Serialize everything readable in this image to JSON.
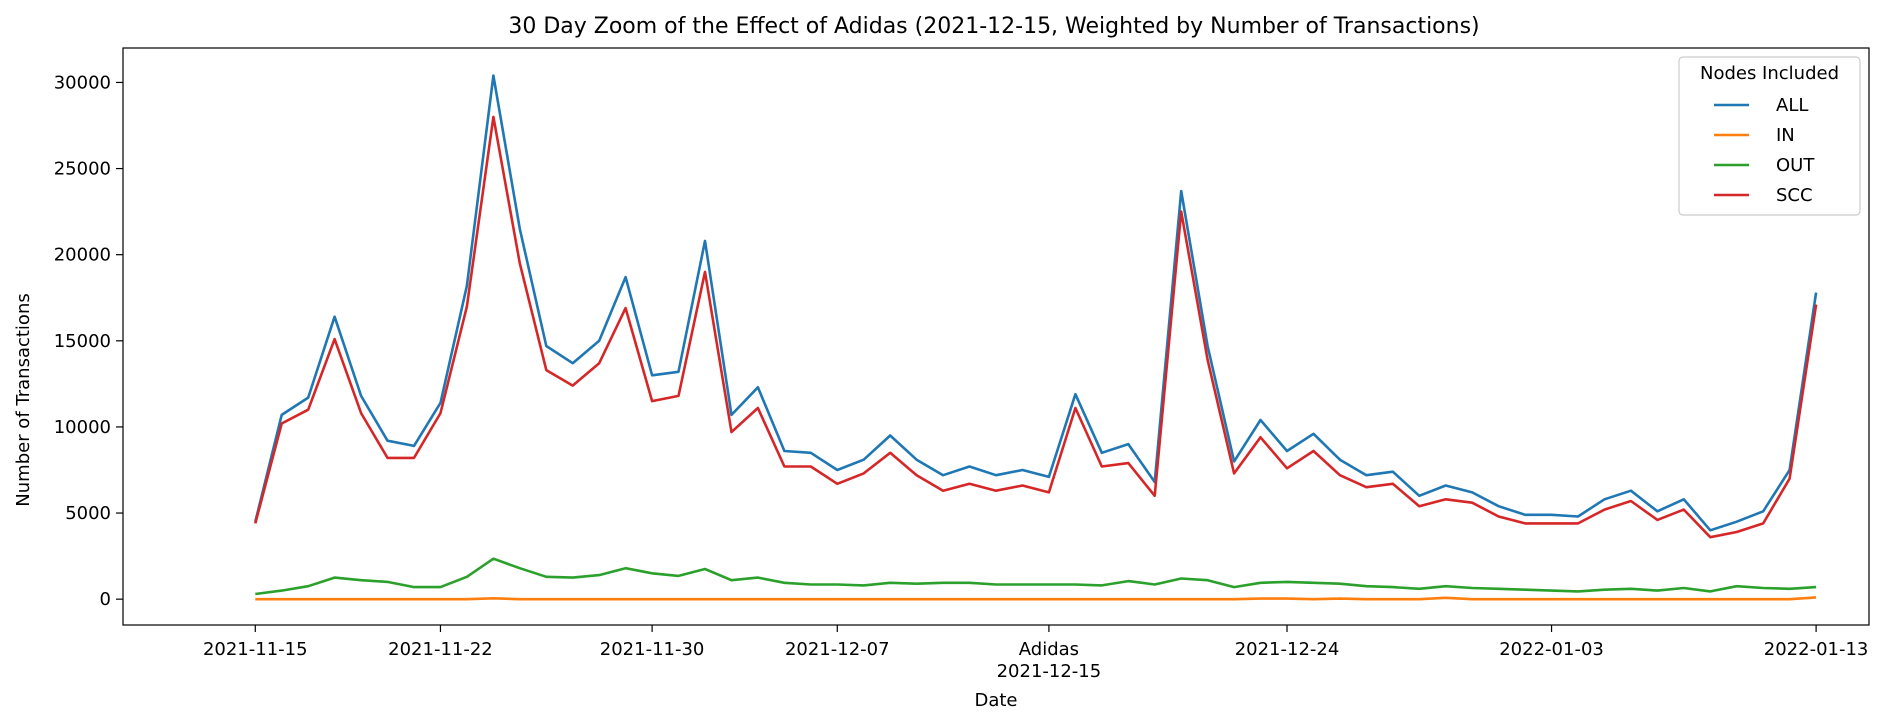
{
  "chart_data": {
    "type": "line",
    "title": "30 Day Zoom of the Effect of Adidas (2021-12-15, Weighted by Number of Transactions)",
    "xlabel": "Date",
    "ylabel": "Number of Transactions",
    "ylim": [
      -1500,
      32000
    ],
    "xlim": [
      "2021-11-10",
      "2022-01-15"
    ],
    "grid": false,
    "legend": {
      "title": "Nodes Included",
      "placement": "top-right"
    },
    "yticks": [
      0,
      5000,
      10000,
      15000,
      20000,
      25000,
      30000
    ],
    "xticks": [
      {
        "date": "2021-11-15",
        "label": "2021-11-15"
      },
      {
        "date": "2021-11-22",
        "label": "2021-11-22"
      },
      {
        "date": "2021-11-30",
        "label": "2021-11-30"
      },
      {
        "date": "2021-12-07",
        "label": "2021-12-07"
      },
      {
        "date": "2021-12-15",
        "label": "Adidas"
      },
      {
        "date": "2021-12-24",
        "label": "2021-12-24"
      },
      {
        "date": "2022-01-03",
        "label": "2022-01-03"
      },
      {
        "date": "2022-01-13",
        "label": "2022-01-13"
      }
    ],
    "event_label": "2021-12-15",
    "x": [
      "2021-11-15",
      "2021-11-16",
      "2021-11-17",
      "2021-11-18",
      "2021-11-19",
      "2021-11-20",
      "2021-11-21",
      "2021-11-22",
      "2021-11-23",
      "2021-11-24",
      "2021-11-25",
      "2021-11-26",
      "2021-11-27",
      "2021-11-28",
      "2021-11-29",
      "2021-11-30",
      "2021-12-01",
      "2021-12-02",
      "2021-12-03",
      "2021-12-04",
      "2021-12-05",
      "2021-12-06",
      "2021-12-07",
      "2021-12-08",
      "2021-12-09",
      "2021-12-10",
      "2021-12-11",
      "2021-12-12",
      "2021-12-13",
      "2021-12-14",
      "2021-12-15",
      "2021-12-16",
      "2021-12-17",
      "2021-12-18",
      "2021-12-19",
      "2021-12-20",
      "2021-12-21",
      "2021-12-22",
      "2021-12-23",
      "2021-12-24",
      "2021-12-25",
      "2021-12-26",
      "2021-12-27",
      "2021-12-28",
      "2021-12-29",
      "2021-12-30",
      "2021-12-31",
      "2022-01-01",
      "2022-01-02",
      "2022-01-03",
      "2022-01-04",
      "2022-01-05",
      "2022-01-06",
      "2022-01-07",
      "2022-01-08",
      "2022-01-09",
      "2022-01-10",
      "2022-01-11",
      "2022-01-12",
      "2022-01-13"
    ],
    "series": [
      {
        "name": "ALL",
        "color": "#1f77b4",
        "values": [
          4500,
          10700,
          11700,
          16400,
          11800,
          9200,
          8900,
          11400,
          18200,
          30400,
          21500,
          14700,
          13700,
          15000,
          18700,
          13000,
          13200,
          20800,
          10700,
          12300,
          8600,
          8500,
          7500,
          8100,
          9500,
          8100,
          7200,
          7700,
          7200,
          7500,
          7100,
          11900,
          8500,
          9000,
          6800,
          23700,
          14700,
          8000,
          10400,
          8600,
          9600,
          8100,
          7200,
          7400,
          6000,
          6600,
          6200,
          5400,
          4900,
          4900,
          4800,
          5800,
          6300,
          5100,
          5800,
          4000,
          4500,
          5100,
          7500,
          17800
        ]
      },
      {
        "name": "IN",
        "color": "#ff7f0e",
        "values": [
          0,
          0,
          0,
          0,
          0,
          0,
          0,
          0,
          0,
          50,
          0,
          0,
          0,
          0,
          0,
          0,
          0,
          0,
          0,
          0,
          0,
          0,
          0,
          0,
          0,
          0,
          0,
          0,
          0,
          0,
          0,
          0,
          0,
          0,
          0,
          0,
          0,
          0,
          30,
          30,
          0,
          30,
          0,
          0,
          0,
          80,
          0,
          0,
          0,
          0,
          0,
          0,
          0,
          0,
          0,
          0,
          0,
          0,
          0,
          100
        ]
      },
      {
        "name": "OUT",
        "color": "#2ca02c",
        "values": [
          300,
          500,
          750,
          1250,
          1100,
          1000,
          700,
          700,
          1300,
          2350,
          1800,
          1300,
          1250,
          1400,
          1800,
          1500,
          1350,
          1750,
          1100,
          1250,
          950,
          850,
          850,
          800,
          950,
          900,
          950,
          950,
          850,
          850,
          850,
          850,
          800,
          1050,
          850,
          1200,
          1100,
          700,
          950,
          1000,
          950,
          900,
          750,
          700,
          600,
          750,
          650,
          600,
          550,
          500,
          450,
          550,
          600,
          500,
          650,
          450,
          750,
          650,
          600,
          700
        ]
      },
      {
        "name": "SCC",
        "color": "#d62728",
        "values": [
          4400,
          10200,
          11000,
          15100,
          10800,
          8200,
          8200,
          10800,
          17000,
          28000,
          19500,
          13300,
          12400,
          13700,
          16900,
          11500,
          11800,
          19000,
          9700,
          11100,
          7700,
          7700,
          6700,
          7300,
          8500,
          7200,
          6300,
          6700,
          6300,
          6600,
          6200,
          11100,
          7700,
          7900,
          6000,
          22500,
          13900,
          7300,
          9400,
          7600,
          8600,
          7200,
          6500,
          6700,
          5400,
          5800,
          5600,
          4800,
          4400,
          4400,
          4400,
          5200,
          5700,
          4600,
          5200,
          3600,
          3900,
          4400,
          7000,
          17100
        ]
      }
    ]
  }
}
